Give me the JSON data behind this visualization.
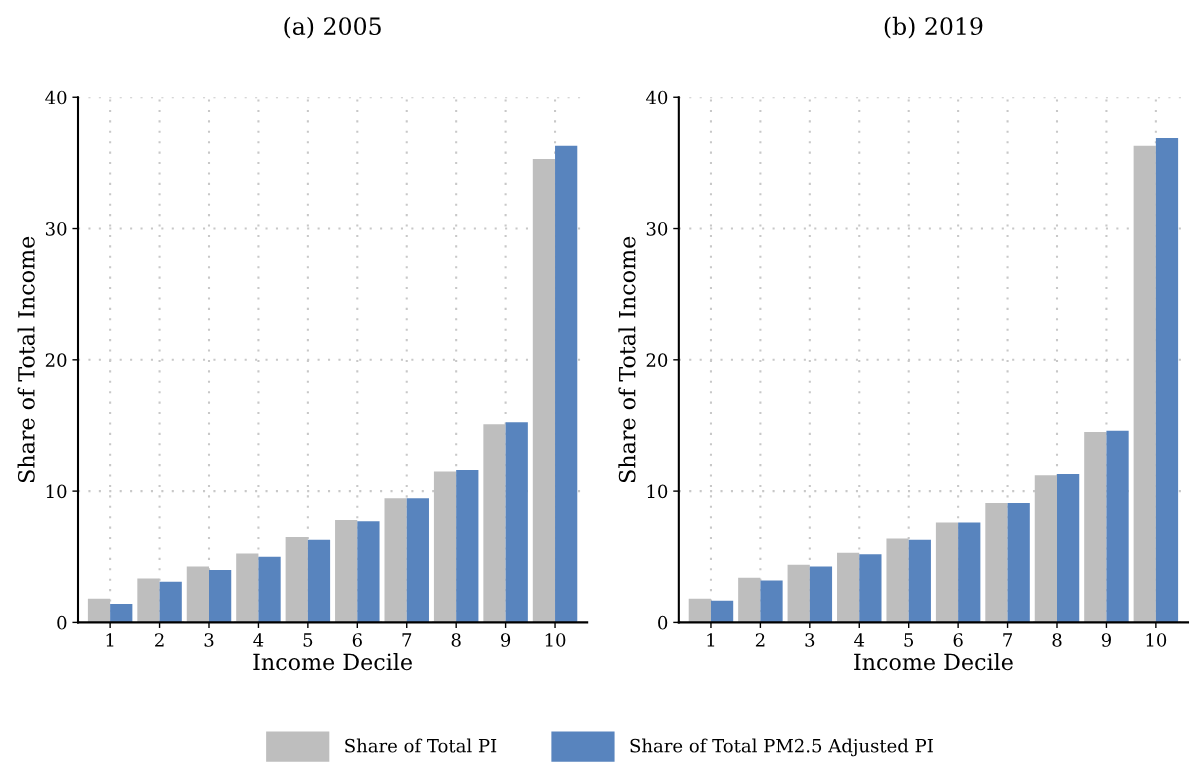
{
  "chart_data": [
    {
      "type": "bar",
      "title": "(a) 2005",
      "xlabel": "Income Decile",
      "ylabel": "Share of Total Income",
      "categories": [
        "1",
        "2",
        "3",
        "4",
        "5",
        "6",
        "7",
        "8",
        "9",
        "10"
      ],
      "ylim": [
        0,
        40
      ],
      "yticks": [
        0,
        10,
        20,
        30,
        40
      ],
      "grid": true,
      "legend": "bottom",
      "series": [
        {
          "name": "Share of Total PI",
          "color": "#bebebe",
          "values": [
            1.8,
            3.35,
            4.25,
            5.25,
            6.5,
            7.8,
            9.45,
            11.5,
            15.1,
            35.3
          ]
        },
        {
          "name": "Share of Total PM2.5 Adjusted PI",
          "color": "#5884be",
          "values": [
            1.4,
            3.1,
            4.0,
            5.0,
            6.3,
            7.7,
            9.45,
            11.6,
            15.25,
            36.3
          ]
        }
      ]
    },
    {
      "type": "bar",
      "title": "(b) 2019",
      "xlabel": "Income Decile",
      "ylabel": "Share of Total Income",
      "categories": [
        "1",
        "2",
        "3",
        "4",
        "5",
        "6",
        "7",
        "8",
        "9",
        "10"
      ],
      "ylim": [
        0,
        40
      ],
      "yticks": [
        0,
        10,
        20,
        30,
        40
      ],
      "grid": true,
      "series": [
        {
          "color": "#bebebe",
          "values": [
            1.8,
            3.4,
            4.4,
            5.3,
            6.4,
            7.6,
            9.1,
            11.2,
            14.5,
            36.3
          ]
        },
        {
          "color": "#5884be",
          "values": [
            1.65,
            3.2,
            4.25,
            5.2,
            6.3,
            7.6,
            9.1,
            11.3,
            14.6,
            36.9
          ]
        }
      ]
    }
  ]
}
